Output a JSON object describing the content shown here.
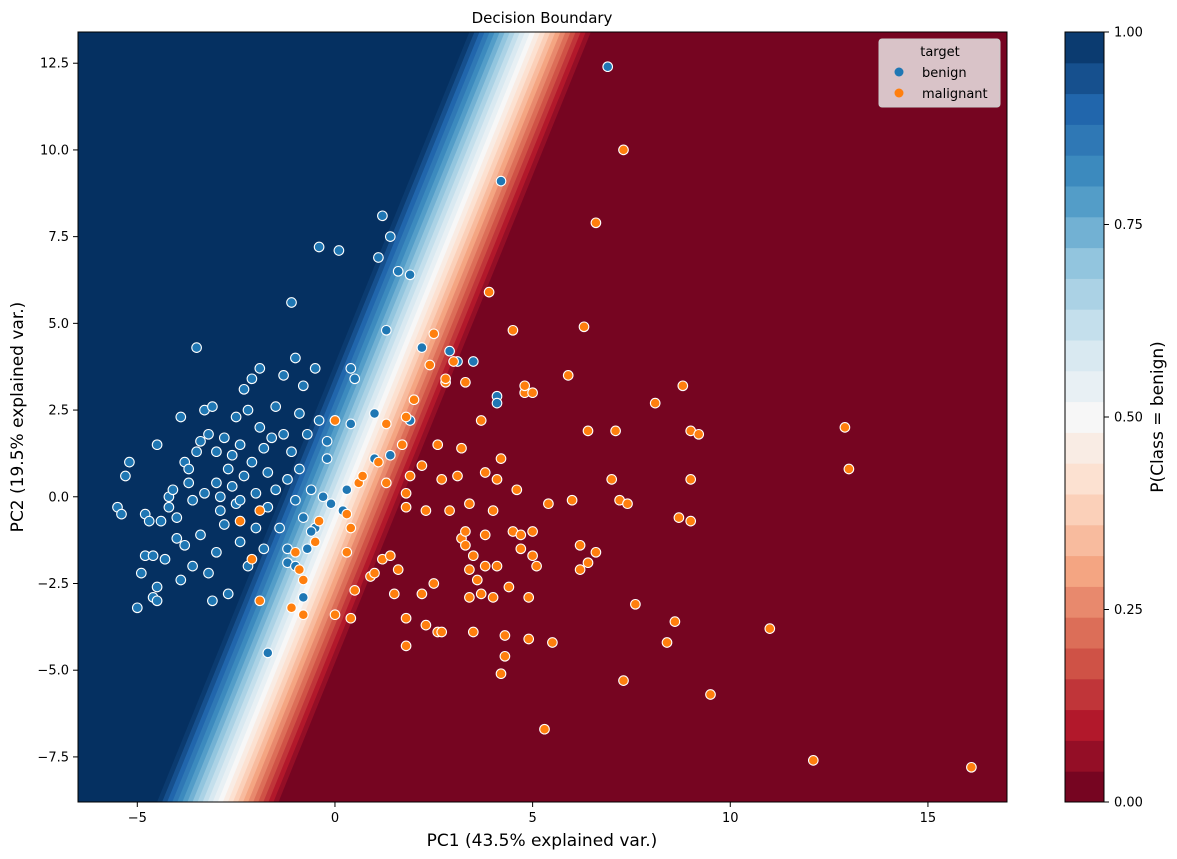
{
  "chart_data": {
    "type": "scatter",
    "title": "Decision Boundary",
    "xlabel": "PC1 (43.5% explained var.)",
    "ylabel": "PC2 (19.5% explained var.)",
    "xlim": [
      -6.5,
      17.0
    ],
    "ylim": [
      -8.8,
      13.4
    ],
    "x_ticks": [
      -5,
      0,
      5,
      10,
      15
    ],
    "x_tick_labels": [
      "−5",
      "0",
      "5",
      "10",
      "15"
    ],
    "y_ticks": [
      -7.5,
      -5.0,
      -2.5,
      0.0,
      2.5,
      5.0,
      7.5,
      10.0,
      12.5
    ],
    "y_tick_labels": [
      "−7.5",
      "−5.0",
      "−2.5",
      "0.0",
      "2.5",
      "5.0",
      "7.5",
      "10.0",
      "12.5"
    ],
    "grid": false,
    "decision_boundary": {
      "description_value": "P(Class = benign) = 0.5 along line",
      "boundary_line": [
        [
          -2.9,
          -8.8
        ],
        [
          5.0,
          13.4
        ]
      ],
      "transition_width_pc1": 3.2,
      "levels": 25
    },
    "colorbar": {
      "label": "P(Class = benign)",
      "range": [
        0.0,
        1.0
      ],
      "ticks": [
        0.0,
        0.25,
        0.5,
        0.75,
        1.0
      ],
      "tick_labels": [
        "0.00",
        "0.25",
        "0.50",
        "0.75",
        "1.00"
      ],
      "colormap": "RdBu"
    },
    "legend": {
      "title": "target",
      "placement": "top-right",
      "entries": [
        {
          "label": "benign",
          "color": "#1f77b4"
        },
        {
          "label": "malignant",
          "color": "#ff7f0e"
        }
      ]
    },
    "series": [
      {
        "name": "benign",
        "color": "#1f77b4",
        "points": [
          [
            -5.5,
            -0.3
          ],
          [
            -5.4,
            -0.5
          ],
          [
            -5.3,
            0.6
          ],
          [
            -5.2,
            1.0
          ],
          [
            -5.0,
            -3.2
          ],
          [
            -4.9,
            -2.2
          ],
          [
            -4.8,
            -1.7
          ],
          [
            -4.8,
            -0.5
          ],
          [
            -4.7,
            -0.7
          ],
          [
            -4.6,
            -2.9
          ],
          [
            -4.6,
            -1.7
          ],
          [
            -4.5,
            -3.0
          ],
          [
            -4.5,
            -2.6
          ],
          [
            -4.5,
            1.5
          ],
          [
            -4.4,
            -0.7
          ],
          [
            -4.3,
            -1.8
          ],
          [
            -4.2,
            -0.3
          ],
          [
            -4.2,
            0.0
          ],
          [
            -4.1,
            0.2
          ],
          [
            -4.0,
            -0.6
          ],
          [
            -4.0,
            -1.2
          ],
          [
            -3.9,
            -2.4
          ],
          [
            -3.9,
            2.3
          ],
          [
            -3.8,
            1.0
          ],
          [
            -3.8,
            -1.4
          ],
          [
            -3.7,
            0.4
          ],
          [
            -3.7,
            0.8
          ],
          [
            -3.6,
            -0.1
          ],
          [
            -3.6,
            -2.0
          ],
          [
            -3.5,
            1.3
          ],
          [
            -3.5,
            4.3
          ],
          [
            -3.4,
            1.6
          ],
          [
            -3.4,
            -1.1
          ],
          [
            -3.3,
            2.5
          ],
          [
            -3.3,
            0.1
          ],
          [
            -3.2,
            1.8
          ],
          [
            -3.2,
            -2.2
          ],
          [
            -3.1,
            2.6
          ],
          [
            -3.1,
            -3.0
          ],
          [
            -3.0,
            0.4
          ],
          [
            -3.0,
            1.3
          ],
          [
            -3.0,
            -1.6
          ],
          [
            -2.9,
            0.0
          ],
          [
            -2.9,
            -0.4
          ],
          [
            -2.8,
            1.7
          ],
          [
            -2.8,
            -0.8
          ],
          [
            -2.7,
            0.8
          ],
          [
            -2.7,
            -2.8
          ],
          [
            -2.6,
            1.2
          ],
          [
            -2.6,
            0.3
          ],
          [
            -2.5,
            2.3
          ],
          [
            -2.5,
            -0.2
          ],
          [
            -2.4,
            1.5
          ],
          [
            -2.4,
            -1.3
          ],
          [
            -2.3,
            3.1
          ],
          [
            -2.3,
            0.6
          ],
          [
            -2.2,
            2.5
          ],
          [
            -2.2,
            -2.0
          ],
          [
            -2.1,
            1.0
          ],
          [
            -2.1,
            3.4
          ],
          [
            -2.0,
            0.1
          ],
          [
            -2.0,
            -0.9
          ],
          [
            -1.9,
            2.0
          ],
          [
            -1.9,
            3.7
          ],
          [
            -1.8,
            1.4
          ],
          [
            -1.8,
            -1.5
          ],
          [
            -1.7,
            0.7
          ],
          [
            -1.7,
            -0.3
          ],
          [
            -1.6,
            1.7
          ],
          [
            -1.5,
            2.6
          ],
          [
            -1.5,
            0.2
          ],
          [
            -1.4,
            -0.9
          ],
          [
            -1.3,
            1.8
          ],
          [
            -1.3,
            3.5
          ],
          [
            -1.2,
            0.5
          ],
          [
            -1.2,
            -1.9
          ],
          [
            -1.1,
            5.6
          ],
          [
            -1.1,
            1.3
          ],
          [
            -1.0,
            4.0
          ],
          [
            -1.0,
            -0.1
          ],
          [
            -0.9,
            2.4
          ],
          [
            -0.9,
            0.8
          ],
          [
            -0.8,
            -0.6
          ],
          [
            -0.8,
            3.2
          ],
          [
            -0.7,
            1.8
          ],
          [
            -0.7,
            -1.5
          ],
          [
            -0.6,
            0.2
          ],
          [
            -0.5,
            3.7
          ],
          [
            -0.5,
            -0.9
          ],
          [
            -0.4,
            7.2
          ],
          [
            -0.4,
            2.2
          ],
          [
            -0.3,
            0.0
          ],
          [
            -0.2,
            1.1
          ],
          [
            -0.2,
            1.6
          ],
          [
            -0.1,
            -0.2
          ],
          [
            0.0,
            2.2
          ],
          [
            0.1,
            7.1
          ],
          [
            0.2,
            -0.4
          ],
          [
            0.3,
            0.2
          ],
          [
            0.4,
            3.7
          ],
          [
            0.5,
            3.4
          ],
          [
            0.4,
            2.1
          ],
          [
            1.0,
            2.4
          ],
          [
            1.0,
            1.1
          ],
          [
            1.1,
            6.9
          ],
          [
            1.2,
            8.1
          ],
          [
            1.3,
            4.8
          ],
          [
            1.4,
            7.5
          ],
          [
            1.4,
            1.2
          ],
          [
            1.6,
            6.5
          ],
          [
            1.9,
            6.4
          ],
          [
            1.9,
            2.2
          ],
          [
            2.2,
            4.3
          ],
          [
            2.9,
            4.2
          ],
          [
            3.1,
            3.9
          ],
          [
            3.5,
            3.9
          ],
          [
            4.1,
            2.9
          ],
          [
            4.1,
            2.7
          ],
          [
            4.2,
            9.1
          ],
          [
            6.9,
            12.4
          ],
          [
            -1.7,
            -4.5
          ],
          [
            -0.8,
            -2.9
          ],
          [
            -1.2,
            -1.5
          ],
          [
            -1.0,
            -2.0
          ],
          [
            -2.4,
            -0.1
          ],
          [
            -0.6,
            -1.0
          ]
        ]
      },
      {
        "name": "malignant",
        "color": "#ff7f0e",
        "points": [
          [
            -2.4,
            -0.7
          ],
          [
            -2.1,
            -1.8
          ],
          [
            -1.9,
            -0.4
          ],
          [
            -1.9,
            -3.0
          ],
          [
            -1.1,
            -3.2
          ],
          [
            -1.0,
            -1.6
          ],
          [
            -0.9,
            -2.1
          ],
          [
            -0.8,
            -3.4
          ],
          [
            -0.8,
            -2.4
          ],
          [
            -0.5,
            -1.3
          ],
          [
            -0.4,
            -0.7
          ],
          [
            0.0,
            -3.4
          ],
          [
            0.0,
            2.2
          ],
          [
            0.3,
            -1.6
          ],
          [
            0.3,
            -0.5
          ],
          [
            0.4,
            -3.5
          ],
          [
            0.4,
            -0.9
          ],
          [
            0.5,
            -2.7
          ],
          [
            0.6,
            0.4
          ],
          [
            0.7,
            0.6
          ],
          [
            0.9,
            -2.3
          ],
          [
            1.0,
            -2.2
          ],
          [
            1.1,
            1.0
          ],
          [
            1.2,
            -1.8
          ],
          [
            1.3,
            0.4
          ],
          [
            1.3,
            2.1
          ],
          [
            1.4,
            -1.7
          ],
          [
            1.5,
            -2.8
          ],
          [
            1.6,
            -2.1
          ],
          [
            1.7,
            1.5
          ],
          [
            1.8,
            2.3
          ],
          [
            1.8,
            0.1
          ],
          [
            1.8,
            -3.5
          ],
          [
            1.8,
            -4.3
          ],
          [
            1.8,
            -0.3
          ],
          [
            1.9,
            0.6
          ],
          [
            2.0,
            2.8
          ],
          [
            2.2,
            -2.8
          ],
          [
            2.2,
            0.9
          ],
          [
            2.3,
            -0.4
          ],
          [
            2.3,
            -3.7
          ],
          [
            2.4,
            3.8
          ],
          [
            2.5,
            4.7
          ],
          [
            2.5,
            -2.5
          ],
          [
            2.6,
            -3.9
          ],
          [
            2.6,
            1.5
          ],
          [
            2.7,
            -3.9
          ],
          [
            2.7,
            0.5
          ],
          [
            2.8,
            3.3
          ],
          [
            2.8,
            3.4
          ],
          [
            2.9,
            -0.4
          ],
          [
            3.0,
            3.9
          ],
          [
            3.1,
            0.6
          ],
          [
            3.2,
            -1.2
          ],
          [
            3.2,
            1.4
          ],
          [
            3.3,
            -1.4
          ],
          [
            3.3,
            -1.0
          ],
          [
            3.3,
            3.3
          ],
          [
            3.4,
            -2.9
          ],
          [
            3.4,
            -2.1
          ],
          [
            3.4,
            -0.2
          ],
          [
            3.5,
            -1.7
          ],
          [
            3.5,
            -3.9
          ],
          [
            3.6,
            -2.4
          ],
          [
            3.7,
            2.2
          ],
          [
            3.7,
            -2.8
          ],
          [
            3.8,
            -2.0
          ],
          [
            3.8,
            -1.1
          ],
          [
            3.8,
            0.7
          ],
          [
            3.9,
            5.9
          ],
          [
            4.0,
            -2.9
          ],
          [
            4.0,
            -0.4
          ],
          [
            4.1,
            0.5
          ],
          [
            4.1,
            -2.0
          ],
          [
            4.2,
            1.1
          ],
          [
            4.2,
            -5.1
          ],
          [
            4.3,
            -4.6
          ],
          [
            4.3,
            -4.0
          ],
          [
            4.4,
            -2.6
          ],
          [
            4.5,
            -1.0
          ],
          [
            4.5,
            4.8
          ],
          [
            4.6,
            0.2
          ],
          [
            4.7,
            -1.1
          ],
          [
            4.7,
            -1.5
          ],
          [
            4.8,
            3.0
          ],
          [
            4.8,
            3.2
          ],
          [
            4.9,
            -2.9
          ],
          [
            4.9,
            -4.1
          ],
          [
            5.0,
            -1.7
          ],
          [
            5.0,
            3.0
          ],
          [
            5.0,
            -1.0
          ],
          [
            5.1,
            -2.0
          ],
          [
            5.3,
            -6.7
          ],
          [
            5.4,
            -0.2
          ],
          [
            5.5,
            -4.2
          ],
          [
            5.9,
            3.5
          ],
          [
            6.0,
            -0.1
          ],
          [
            6.2,
            -1.4
          ],
          [
            6.2,
            -2.1
          ],
          [
            6.3,
            4.9
          ],
          [
            6.4,
            1.9
          ],
          [
            6.4,
            -1.9
          ],
          [
            6.6,
            -1.6
          ],
          [
            6.6,
            7.9
          ],
          [
            7.0,
            0.5
          ],
          [
            7.1,
            1.9
          ],
          [
            7.2,
            -0.1
          ],
          [
            7.3,
            10.0
          ],
          [
            7.3,
            -5.3
          ],
          [
            7.4,
            -0.2
          ],
          [
            7.6,
            -3.1
          ],
          [
            8.1,
            2.7
          ],
          [
            8.4,
            -4.2
          ],
          [
            8.6,
            -3.6
          ],
          [
            8.7,
            -0.6
          ],
          [
            8.8,
            3.2
          ],
          [
            9.0,
            1.9
          ],
          [
            9.0,
            -0.7
          ],
          [
            9.0,
            0.5
          ],
          [
            9.2,
            1.8
          ],
          [
            9.5,
            -5.7
          ],
          [
            11.0,
            -3.8
          ],
          [
            12.1,
            -7.6
          ],
          [
            12.9,
            2.0
          ],
          [
            13.0,
            0.8
          ],
          [
            16.1,
            -7.8
          ]
        ]
      }
    ]
  }
}
